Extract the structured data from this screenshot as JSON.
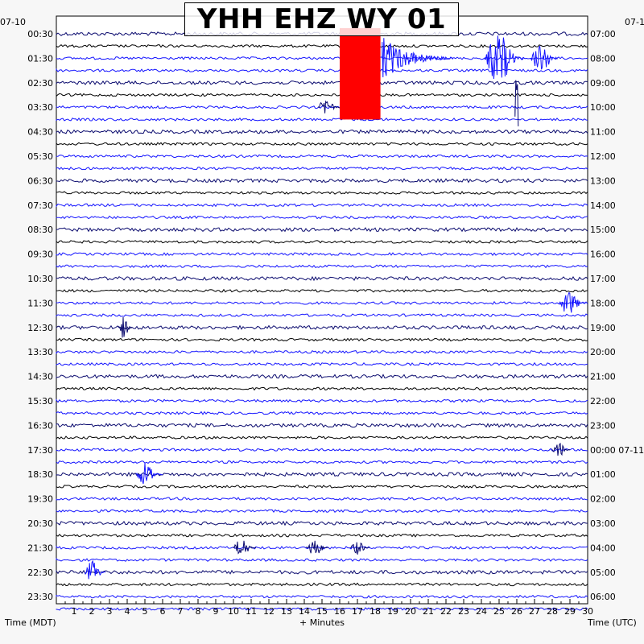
{
  "chart_data": {
    "type": "line",
    "title": "YHH EHZ WY 01",
    "xlabel": "+ Minutes",
    "left_axis_title": "Time (MDT)",
    "right_axis_title": "Time (UTC)",
    "top_left_date": "07-10",
    "top_right_date": "07-1",
    "right_date_marker": {
      "row_label": "00:00",
      "date": "07-11"
    },
    "x_ticks": [
      "1",
      "2",
      "3",
      "4",
      "5",
      "6",
      "7",
      "8",
      "9",
      "10",
      "11",
      "12",
      "13",
      "14",
      "15",
      "16",
      "17",
      "18",
      "19",
      "20",
      "21",
      "22",
      "23",
      "24",
      "25",
      "26",
      "27",
      "28",
      "29",
      "30"
    ],
    "xlim": [
      0,
      30
    ],
    "left_time_labels": [
      "00:30",
      "01:30",
      "02:30",
      "03:30",
      "04:30",
      "05:30",
      "06:30",
      "07:30",
      "08:30",
      "09:30",
      "10:30",
      "11:30",
      "12:30",
      "13:30",
      "14:30",
      "15:30",
      "16:30",
      "17:30",
      "18:30",
      "19:30",
      "20:30",
      "21:30",
      "22:30",
      "23:30"
    ],
    "right_time_labels": [
      "07:00",
      "08:00",
      "09:00",
      "10:00",
      "11:00",
      "12:00",
      "13:00",
      "14:00",
      "15:00",
      "16:00",
      "17:00",
      "18:00",
      "19:00",
      "20:00",
      "21:00",
      "22:00",
      "23:00",
      "00:00",
      "01:00",
      "02:00",
      "03:00",
      "04:00",
      "05:00",
      "06:00"
    ],
    "traces_per_hour": 2,
    "trace_colors": [
      "#0a0a6e",
      "#000000",
      "#1515ff",
      "#1515ff"
    ],
    "events": [
      {
        "hour": 1,
        "minute": 16.0,
        "duration_min": 2.3,
        "amplitude": 1.0,
        "color": "#ff0000",
        "kind": "clipped",
        "rows_spanned": 7
      },
      {
        "hour": 1,
        "minute": 18.4,
        "duration_min": 4.0,
        "amplitude": 0.9,
        "color": "#1515ff",
        "kind": "coda"
      },
      {
        "hour": 1,
        "minute": 24.2,
        "duration_min": 2.2,
        "amplitude": 0.9,
        "color": "#1515ff",
        "kind": "burst"
      },
      {
        "hour": 1,
        "minute": 26.8,
        "duration_min": 1.5,
        "amplitude": 0.6,
        "color": "#1515ff",
        "kind": "burst"
      },
      {
        "hour": 3,
        "minute": 14.8,
        "duration_min": 1.2,
        "amplitude": 0.35,
        "color": "#0a0a6e",
        "kind": "burst"
      },
      {
        "hour": 3,
        "minute": 25.9,
        "duration_min": 0.2,
        "amplitude": 0.9,
        "color": "#0a0a6e",
        "kind": "spike"
      },
      {
        "hour": 11,
        "minute": 28.4,
        "duration_min": 1.5,
        "amplitude": 0.45,
        "color": "#1515ff",
        "kind": "burst"
      },
      {
        "hour": 12,
        "minute": 3.5,
        "duration_min": 0.8,
        "amplitude": 0.4,
        "color": "#0a0a6e",
        "kind": "burst"
      },
      {
        "hour": 17,
        "minute": 28.0,
        "duration_min": 1.0,
        "amplitude": 0.3,
        "color": "#0a0a6e",
        "kind": "burst"
      },
      {
        "hour": 18,
        "minute": 4.5,
        "duration_min": 1.5,
        "amplitude": 0.45,
        "color": "#1515ff",
        "kind": "burst"
      },
      {
        "hour": 21,
        "minute": 10.0,
        "duration_min": 1.3,
        "amplitude": 0.35,
        "color": "#0a0a6e",
        "kind": "burst"
      },
      {
        "hour": 21,
        "minute": 14.1,
        "duration_min": 1.3,
        "amplitude": 0.3,
        "color": "#0a0a6e",
        "kind": "burst"
      },
      {
        "hour": 21,
        "minute": 16.6,
        "duration_min": 1.1,
        "amplitude": 0.25,
        "color": "#0a0a6e",
        "kind": "burst"
      },
      {
        "hour": 22,
        "minute": 1.6,
        "duration_min": 1.2,
        "amplitude": 0.4,
        "color": "#1515ff",
        "kind": "burst"
      }
    ]
  }
}
